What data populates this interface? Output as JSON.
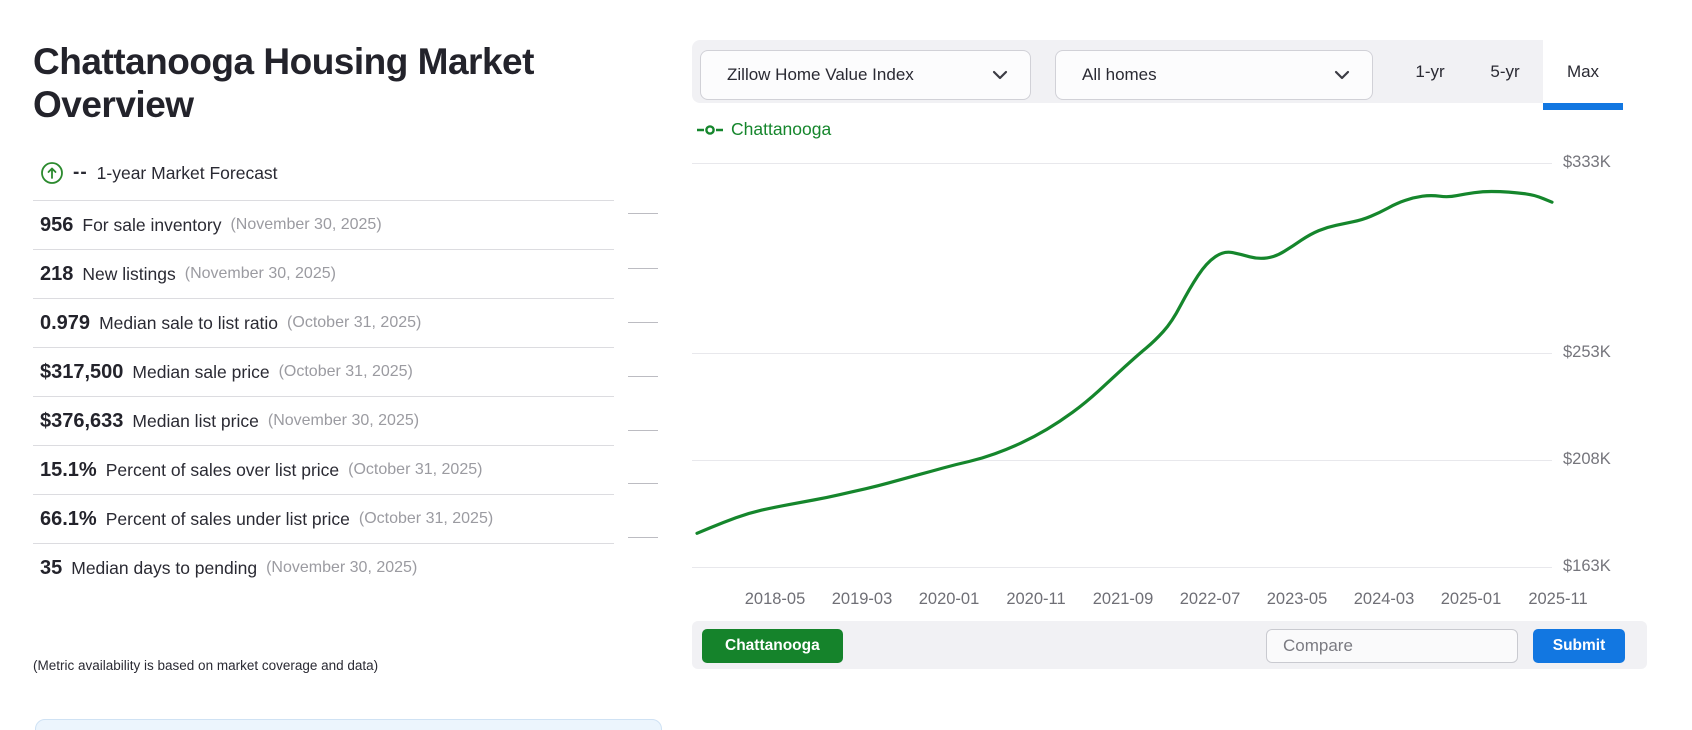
{
  "left_panel": {
    "title": "Chattanooga Housing Market Overview",
    "forecast": {
      "dash": "--",
      "label": "1-year Market Forecast"
    },
    "stats": [
      {
        "value": "956",
        "label": "For sale inventory",
        "date": "(November 30, 2025)"
      },
      {
        "value": "218",
        "label": "New listings",
        "date": "(November 30, 2025)"
      },
      {
        "value": "0.979",
        "label": "Median sale to list ratio",
        "date": "(October 31, 2025)"
      },
      {
        "value": "$317,500",
        "label": "Median sale price",
        "date": "(October 31, 2025)"
      },
      {
        "value": "$376,633",
        "label": "Median list price",
        "date": "(November 30, 2025)"
      },
      {
        "value": "15.1%",
        "label": "Percent of sales over list price",
        "date": "(October 31, 2025)"
      },
      {
        "value": "66.1%",
        "label": "Percent of sales under list price",
        "date": "(October 31, 2025)"
      },
      {
        "value": "35",
        "label": "Median days to pending",
        "date": "(November 30, 2025)"
      }
    ],
    "note": "(Metric availability is based on market coverage and data)"
  },
  "toolbar": {
    "metric_dropdown": "Zillow Home Value Index",
    "hometype_dropdown": "All homes",
    "tabs": [
      {
        "label": "1-yr",
        "selected": false
      },
      {
        "label": "5-yr",
        "selected": false
      },
      {
        "label": "Max",
        "selected": true
      }
    ]
  },
  "legend": {
    "label": "Chattanooga"
  },
  "chart_data": {
    "type": "line",
    "series_name": "Chattanooga",
    "x_ticks": [
      "2018-05",
      "2019-03",
      "2020-01",
      "2020-11",
      "2021-09",
      "2022-07",
      "2023-05",
      "2024-03",
      "2025-01",
      "2025-11"
    ],
    "y_ticks": [
      {
        "label": "$333K",
        "value": 333
      },
      {
        "label": "$253K",
        "value": 253
      },
      {
        "label": "$208K",
        "value": 208
      },
      {
        "label": "$163K",
        "value": 163
      }
    ],
    "unit": "USD thousands (Zillow Home Value Index)",
    "grid": true,
    "legend_position": "top-left",
    "ylim": [
      150,
      345
    ],
    "points": [
      [
        "2017-08",
        177.0
      ],
      [
        "2017-11",
        181.5
      ],
      [
        "2018-02",
        185.5
      ],
      [
        "2018-05",
        188.0
      ],
      [
        "2018-08",
        190.0
      ],
      [
        "2018-11",
        192.0
      ],
      [
        "2019-02",
        194.5
      ],
      [
        "2019-05",
        197.0
      ],
      [
        "2019-08",
        200.0
      ],
      [
        "2019-11",
        203.0
      ],
      [
        "2020-02",
        206.0
      ],
      [
        "2020-05",
        208.5
      ],
      [
        "2020-08",
        212.5
      ],
      [
        "2020-11",
        217.5
      ],
      [
        "2021-02",
        224.0
      ],
      [
        "2021-05",
        232.0
      ],
      [
        "2021-08",
        242.0
      ],
      [
        "2021-11",
        252.0
      ],
      [
        "2022-01",
        258.0
      ],
      [
        "2022-03",
        266.0
      ],
      [
        "2022-05",
        280.0
      ],
      [
        "2022-07",
        291.0
      ],
      [
        "2022-09",
        296.0
      ],
      [
        "2022-11",
        294.5
      ],
      [
        "2023-01",
        292.5
      ],
      [
        "2023-03",
        293.5
      ],
      [
        "2023-05",
        298.0
      ],
      [
        "2023-07",
        303.0
      ],
      [
        "2023-09",
        306.0
      ],
      [
        "2023-11",
        307.5
      ],
      [
        "2024-01",
        309.0
      ],
      [
        "2024-03",
        312.0
      ],
      [
        "2024-05",
        316.0
      ],
      [
        "2024-07",
        318.5
      ],
      [
        "2024-09",
        319.5
      ],
      [
        "2024-11",
        318.5
      ],
      [
        "2025-01",
        320.0
      ],
      [
        "2025-03",
        321.0
      ],
      [
        "2025-05",
        321.0
      ],
      [
        "2025-07",
        320.5
      ],
      [
        "2025-09",
        319.5
      ],
      [
        "2025-11",
        316.5
      ]
    ]
  },
  "footer": {
    "region_button": "Chattanooga",
    "compare_placeholder": "Compare",
    "submit_button": "Submit"
  },
  "colors": {
    "line_green": "#15862c",
    "button_green": "#15832b",
    "accent_blue": "#1277e1",
    "text_dark": "#2a2a33",
    "text_gray": "#9b9ba1",
    "axis_gray": "#75757c",
    "toolbar_gray": "#f1f1f4"
  }
}
